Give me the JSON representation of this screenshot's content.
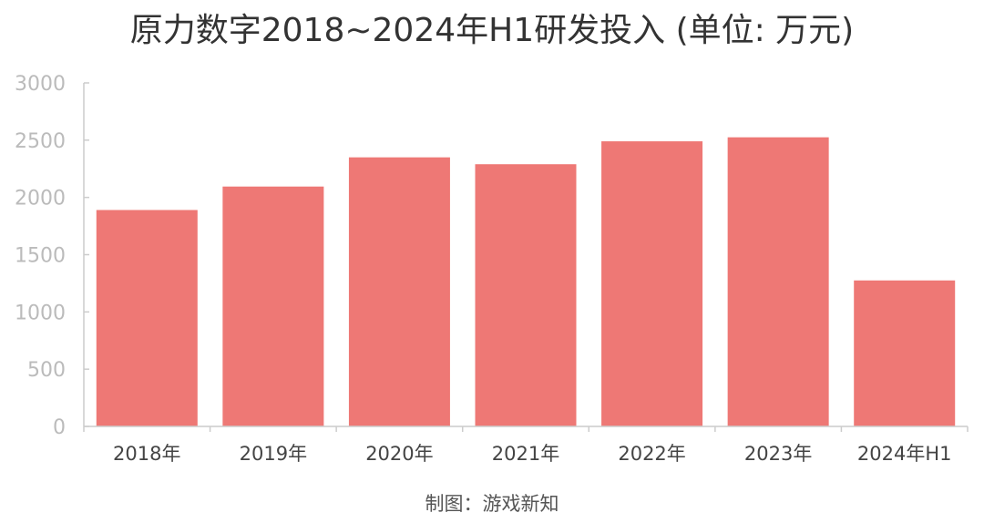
{
  "chart_data": {
    "type": "bar",
    "title": "原力数字2018~2024年H1研发投入 (单位: 万元)",
    "categories": [
      "2018年",
      "2019年",
      "2020年",
      "2021年",
      "2022年",
      "2023年",
      "2024年H1"
    ],
    "values": [
      1890,
      2095,
      2350,
      2290,
      2490,
      2525,
      1275
    ],
    "xlabel": "",
    "ylabel": "",
    "ylim": [
      0,
      3000
    ],
    "yticks": [
      0,
      500,
      1000,
      1500,
      2000,
      2500,
      3000
    ],
    "grid": false,
    "legend": "none",
    "bar_color": "#ee7875"
  },
  "source": "制图：游戏新知"
}
